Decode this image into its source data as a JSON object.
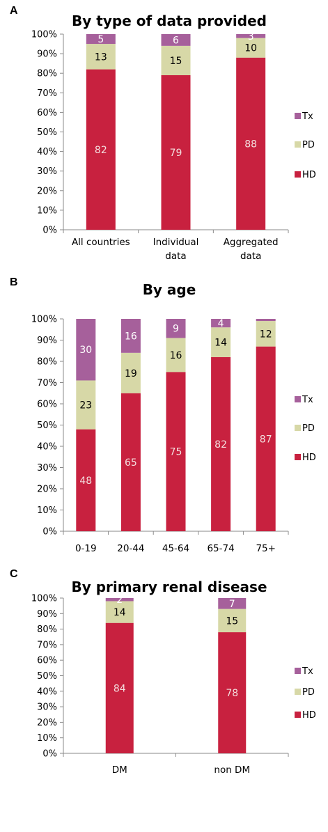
{
  "chart_data": [
    {
      "panel": "A",
      "type": "bar",
      "stacked": true,
      "title": "By type of data provided",
      "categories": [
        "All countries",
        "Individual data",
        "Aggregated data"
      ],
      "category_lines": [
        [
          "All countries"
        ],
        [
          "Individual",
          "data"
        ],
        [
          "Aggregated",
          "data"
        ]
      ],
      "series": [
        {
          "name": "HD",
          "values": [
            82,
            79,
            88
          ],
          "labels": [
            "82",
            "79",
            "88"
          ],
          "color": "#c8213f",
          "label_color": "#f3dede"
        },
        {
          "name": "PD",
          "values": [
            13,
            15,
            10
          ],
          "labels": [
            "13",
            "15",
            "10"
          ],
          "color": "#d7d8a7",
          "label_color": "#000000"
        },
        {
          "name": "Tx",
          "values": [
            5,
            6,
            3
          ],
          "labels": [
            "5",
            "6",
            "3"
          ],
          "color": "#a6609b",
          "label_color": "#ffffff"
        }
      ],
      "yticks": [
        "0%",
        "10%",
        "20%",
        "30%",
        "40%",
        "50%",
        "60%",
        "70%",
        "80%",
        "90%",
        "100%"
      ],
      "ylim": [
        0,
        100
      ],
      "legend": [
        "Tx",
        "PD",
        "HD"
      ],
      "legend_position": "right"
    },
    {
      "panel": "B",
      "type": "bar",
      "stacked": true,
      "title": "By age",
      "categories": [
        "0-19",
        "20-44",
        "45-64",
        "65-74",
        "75+"
      ],
      "category_lines": [
        [
          "0-19"
        ],
        [
          "20-44"
        ],
        [
          "45-64"
        ],
        [
          "65-74"
        ],
        [
          "75+"
        ]
      ],
      "series": [
        {
          "name": "HD",
          "values": [
            48,
            65,
            75,
            82,
            87
          ],
          "labels": [
            "48",
            "65",
            "75",
            "82",
            "87"
          ],
          "color": "#c8213f",
          "label_color": "#f3dede"
        },
        {
          "name": "PD",
          "values": [
            23,
            19,
            16,
            14,
            12
          ],
          "labels": [
            "23",
            "19",
            "16",
            "14",
            "12"
          ],
          "color": "#d7d8a7",
          "label_color": "#000000"
        },
        {
          "name": "Tx",
          "values": [
            30,
            16,
            9,
            4,
            1
          ],
          "labels": [
            "30",
            "16",
            "9",
            "4",
            ""
          ],
          "color": "#a6609b",
          "label_color": "#ffffff"
        }
      ],
      "yticks": [
        "0%",
        "10%",
        "20%",
        "30%",
        "40%",
        "50%",
        "60%",
        "70%",
        "80%",
        "90%",
        "100%"
      ],
      "ylim": [
        0,
        100
      ],
      "legend": [
        "Tx",
        "PD",
        "HD"
      ],
      "legend_position": "right"
    },
    {
      "panel": "C",
      "type": "bar",
      "stacked": true,
      "title": "By primary renal disease",
      "categories": [
        "DM",
        "non DM"
      ],
      "category_lines": [
        [
          "DM"
        ],
        [
          "non DM"
        ]
      ],
      "series": [
        {
          "name": "HD",
          "values": [
            84,
            78
          ],
          "labels": [
            "84",
            "78"
          ],
          "color": "#c8213f",
          "label_color": "#f3dede"
        },
        {
          "name": "PD",
          "values": [
            14,
            15
          ],
          "labels": [
            "14",
            "15"
          ],
          "color": "#d7d8a7",
          "label_color": "#000000"
        },
        {
          "name": "Tx",
          "values": [
            2,
            7
          ],
          "labels": [
            "2",
            "7"
          ],
          "color": "#a6609b",
          "label_color": "#ffffff"
        }
      ],
      "yticks": [
        "0%",
        "10%",
        "20%",
        "30%",
        "40%",
        "50%",
        "60%",
        "70%",
        "80%",
        "90%",
        "100%"
      ],
      "ylim": [
        0,
        100
      ],
      "legend": [
        "Tx",
        "PD",
        "HD"
      ],
      "legend_position": "right"
    }
  ]
}
